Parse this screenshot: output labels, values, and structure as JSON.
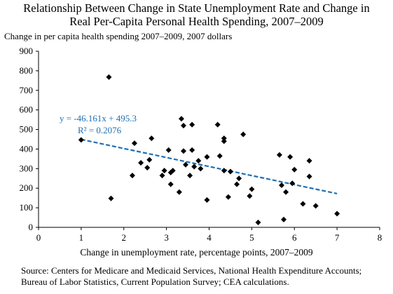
{
  "chart_data": {
    "type": "scatter",
    "title": "Relationship Between Change in State Unemployment Rate and Change in Real Per-Capita Personal Health Spending, 2007–2009",
    "title_lines": [
      "Relationship Between Change in State Unemployment Rate and Change in",
      "Real Per-Capita Personal Health Spending, 2007–2009"
    ],
    "ylabel": "Change in per capita health spending 2007–2009, 2007 dollars",
    "xlabel": "Change in unemployment rate, percentage points, 2007–2009",
    "xlim": [
      0,
      8
    ],
    "ylim": [
      0,
      900
    ],
    "xticks": [
      0,
      1,
      2,
      3,
      4,
      5,
      6,
      7,
      8
    ],
    "yticks": [
      0,
      100,
      200,
      300,
      400,
      500,
      600,
      700,
      800,
      900
    ],
    "grid": false,
    "trendline": {
      "slope": -46.161,
      "intercept": 495.3,
      "x_range": [
        1.0,
        7.0
      ],
      "equation": "y = -46.161x + 495.3",
      "r_squared": "R² = 0.2076",
      "color": "#1f6fb5",
      "style": "dashed"
    },
    "marker_color": "#000000",
    "points": [
      {
        "x": 1.0,
        "y": 447
      },
      {
        "x": 1.65,
        "y": 768
      },
      {
        "x": 1.7,
        "y": 148
      },
      {
        "x": 2.2,
        "y": 265
      },
      {
        "x": 2.25,
        "y": 430
      },
      {
        "x": 2.4,
        "y": 330
      },
      {
        "x": 2.55,
        "y": 305
      },
      {
        "x": 2.6,
        "y": 345
      },
      {
        "x": 2.65,
        "y": 455
      },
      {
        "x": 2.9,
        "y": 265
      },
      {
        "x": 2.95,
        "y": 290
      },
      {
        "x": 3.05,
        "y": 395
      },
      {
        "x": 3.1,
        "y": 220
      },
      {
        "x": 3.1,
        "y": 280
      },
      {
        "x": 3.15,
        "y": 290
      },
      {
        "x": 3.3,
        "y": 180
      },
      {
        "x": 3.35,
        "y": 555
      },
      {
        "x": 3.4,
        "y": 520
      },
      {
        "x": 3.4,
        "y": 390
      },
      {
        "x": 3.45,
        "y": 320
      },
      {
        "x": 3.55,
        "y": 265
      },
      {
        "x": 3.6,
        "y": 525
      },
      {
        "x": 3.6,
        "y": 395
      },
      {
        "x": 3.65,
        "y": 310
      },
      {
        "x": 3.75,
        "y": 340
      },
      {
        "x": 3.8,
        "y": 300
      },
      {
        "x": 3.95,
        "y": 140
      },
      {
        "x": 3.95,
        "y": 360
      },
      {
        "x": 4.2,
        "y": 525
      },
      {
        "x": 4.25,
        "y": 365
      },
      {
        "x": 4.35,
        "y": 455
      },
      {
        "x": 4.35,
        "y": 440
      },
      {
        "x": 4.35,
        "y": 290
      },
      {
        "x": 4.45,
        "y": 155
      },
      {
        "x": 4.5,
        "y": 285
      },
      {
        "x": 4.65,
        "y": 220
      },
      {
        "x": 4.7,
        "y": 250
      },
      {
        "x": 4.8,
        "y": 475
      },
      {
        "x": 4.95,
        "y": 160
      },
      {
        "x": 5.0,
        "y": 195
      },
      {
        "x": 5.15,
        "y": 25
      },
      {
        "x": 5.65,
        "y": 370
      },
      {
        "x": 5.7,
        "y": 215
      },
      {
        "x": 5.75,
        "y": 40
      },
      {
        "x": 5.8,
        "y": 180
      },
      {
        "x": 5.9,
        "y": 360
      },
      {
        "x": 5.95,
        "y": 225
      },
      {
        "x": 6.0,
        "y": 295
      },
      {
        "x": 6.2,
        "y": 120
      },
      {
        "x": 6.35,
        "y": 340
      },
      {
        "x": 6.35,
        "y": 260
      },
      {
        "x": 6.5,
        "y": 110
      },
      {
        "x": 7.0,
        "y": 70
      }
    ]
  },
  "source_note": "Source: Centers for Medicare and Medicaid Services, National Health Expenditure Accounts; Bureau of Labor Statistics, Current Population Survey; CEA calculations."
}
